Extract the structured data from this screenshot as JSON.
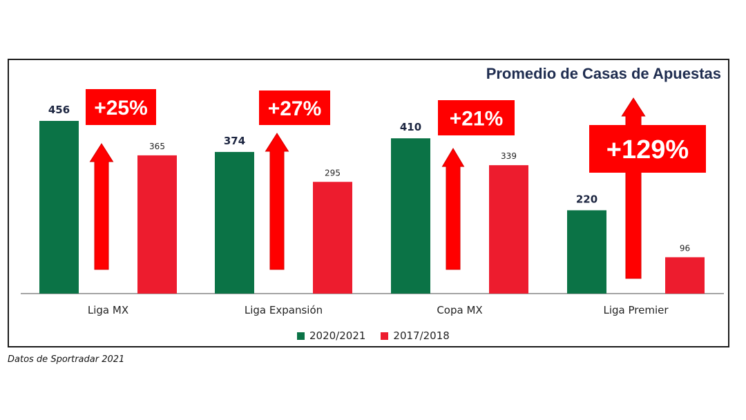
{
  "source_note": "Datos de Sportradar 2021",
  "colors": {
    "series_2020": "#0b7346",
    "series_2017": "#ed1c2e",
    "arrow": "#ff0000",
    "title": "#1f2d50"
  },
  "chart_data": {
    "type": "bar",
    "title": "Promedio de Casas de Apuestas",
    "categories": [
      "Liga MX",
      "Liga Expansión",
      "Copa MX",
      "Liga Premier"
    ],
    "series": [
      {
        "name": "2020/2021",
        "values": [
          456,
          374,
          410,
          220
        ]
      },
      {
        "name": "2017/2018",
        "values": [
          365,
          295,
          339,
          96
        ]
      }
    ],
    "annotations": [
      "+25%",
      "+27%",
      "+21%",
      "+129%"
    ],
    "ylim": [
      0,
      500
    ],
    "grid": false,
    "legend": "bottom-center"
  }
}
